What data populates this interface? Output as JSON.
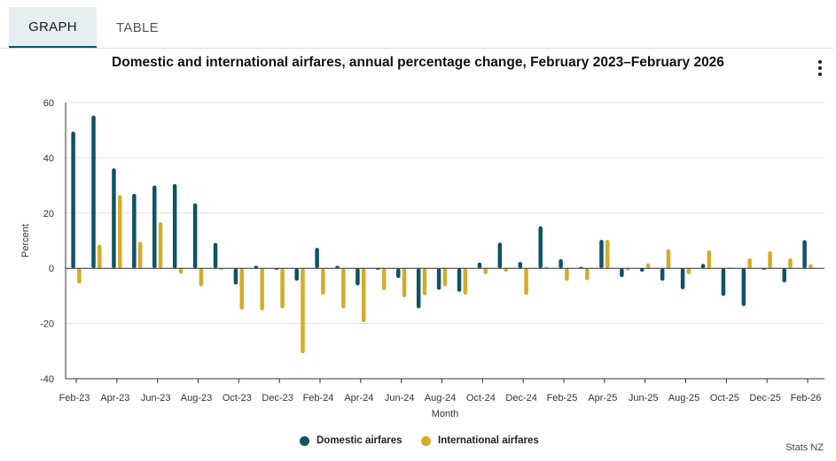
{
  "tabs": {
    "graph": "GRAPH",
    "table": "TABLE"
  },
  "title": "Domestic and international airfares, annual percentage change, February 2023–February 2026",
  "credit": "Stats NZ",
  "colors": {
    "domestic": "#0e5366",
    "international": "#d4ac2a",
    "grid": "#e3e3e3",
    "axis": "#333333"
  },
  "icons": {
    "menu": "kebab-menu-icon"
  },
  "chart_data": {
    "type": "bar",
    "title": "Domestic and international airfares, annual percentage change, February 2023–February 2026",
    "xlabel": "Month",
    "ylabel": "Percent",
    "ylim": [
      -40,
      60
    ],
    "yticks": [
      -40,
      -20,
      0,
      20,
      40,
      60
    ],
    "grid": true,
    "legend": "bottom-center",
    "categories": [
      "Feb-23",
      "Mar-23",
      "Apr-23",
      "May-23",
      "Jun-23",
      "Jul-23",
      "Aug-23",
      "Sep-23",
      "Oct-23",
      "Nov-23",
      "Dec-23",
      "Jan-24",
      "Feb-24",
      "Mar-24",
      "Apr-24",
      "May-24",
      "Jun-24",
      "Jul-24",
      "Aug-24",
      "Sep-24",
      "Oct-24",
      "Nov-24",
      "Dec-24",
      "Jan-25",
      "Feb-25",
      "Mar-25",
      "Apr-25",
      "May-25",
      "Jun-25",
      "Jul-25",
      "Aug-25",
      "Sep-25",
      "Oct-25",
      "Nov-25",
      "Dec-25",
      "Jan-26",
      "Feb-26"
    ],
    "tick_labels": [
      "Feb-23",
      "Apr-23",
      "Jun-23",
      "Aug-23",
      "Oct-23",
      "Dec-23",
      "Feb-24",
      "Apr-24",
      "Jun-24",
      "Aug-24",
      "Oct-24",
      "Dec-24",
      "Feb-25",
      "Apr-25",
      "Jun-25",
      "Aug-25",
      "Oct-25",
      "Dec-25",
      "Feb-26"
    ],
    "series": [
      {
        "name": "Domestic airfares",
        "values": [
          49.5,
          55.3,
          36.2,
          27,
          30,
          30.5,
          23.5,
          9.2,
          -5.9,
          0.9,
          0,
          -4.5,
          7.4,
          0.9,
          -6.2,
          0,
          -3.5,
          -14.5,
          -7.8,
          -8.5,
          2.1,
          9.3,
          2.3,
          15.2,
          3.3,
          0.5,
          10.3,
          -3.2,
          -1.2,
          -4.5,
          -7.6,
          1.6,
          -10,
          -13.7,
          -0.3,
          -5.1,
          10.2
        ]
      },
      {
        "name": "International airfares",
        "values": [
          -5.5,
          8.5,
          26.5,
          9.6,
          16.7,
          -2,
          -6.5,
          0,
          -15,
          -15.2,
          -14.5,
          -30.8,
          -9.5,
          -14.5,
          -19.5,
          -7.9,
          -10.5,
          -9.8,
          -6.5,
          -9.5,
          -2.1,
          -1.2,
          -9.6,
          0.5,
          -4.5,
          -4.3,
          10.3,
          -0.8,
          1.8,
          6.9,
          -2.2,
          6.5,
          0.3,
          3.6,
          6.1,
          3.6,
          1.5
        ]
      }
    ]
  }
}
